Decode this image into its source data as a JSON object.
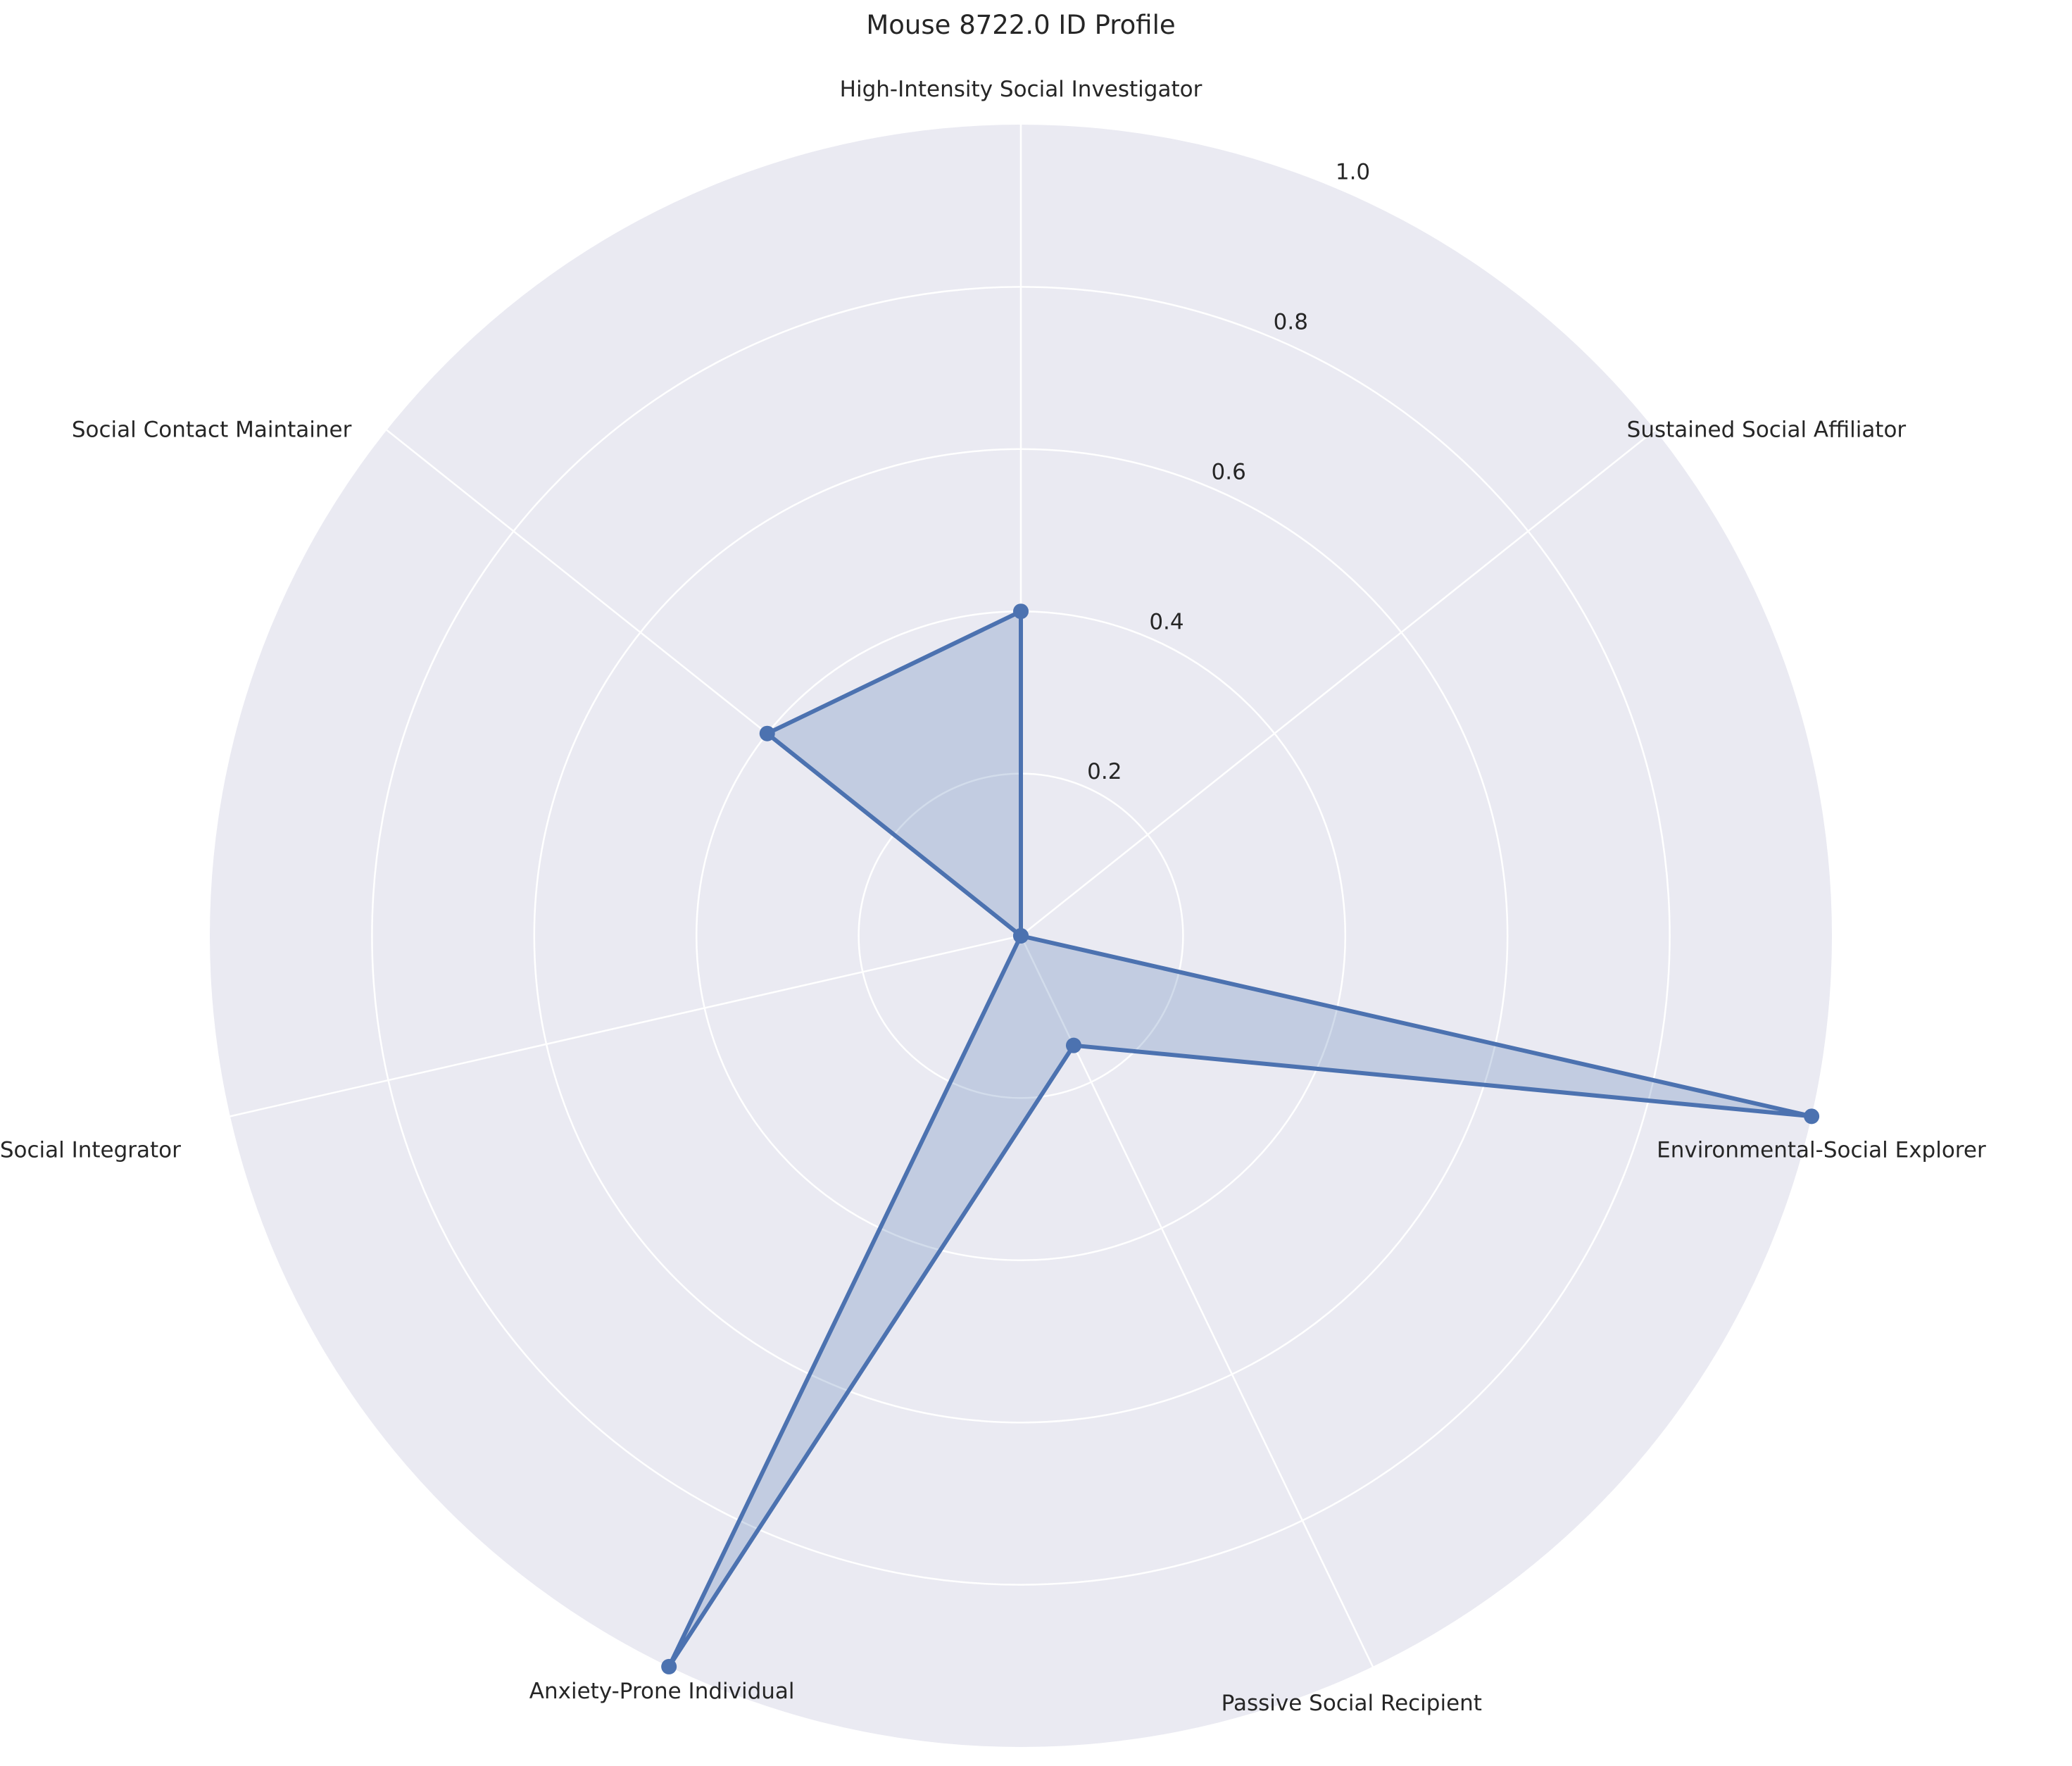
{
  "chart_data": {
    "type": "radar",
    "title": "Mouse 8722.0 ID Profile",
    "categories": [
      "High-Intensity Social Investigator",
      "Sustained Social Affiliator",
      "Environmental-Social Explorer",
      "Passive Social Recipient",
      "Anxiety-Prone Individual",
      "Dynamic Social Integrator",
      "Social Contact Maintainer"
    ],
    "series": [
      {
        "values": [
          0.4,
          0.0,
          1.0,
          0.15,
          1.0,
          0.0,
          0.4
        ],
        "color": "#4c72b0"
      }
    ],
    "rlim": [
      0,
      1.0
    ],
    "rticks": [
      "0.2",
      "0.4",
      "0.6",
      "0.8",
      "1.0"
    ],
    "grid": true,
    "background_color": "#eaeaf2",
    "grid_color": "#ffffff"
  }
}
